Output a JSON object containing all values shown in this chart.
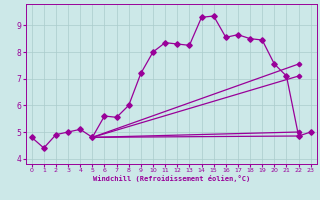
{
  "xlabel": "Windchill (Refroidissement éolien,°C)",
  "background_color": "#cce8e8",
  "grid_color": "#aacccc",
  "line_color": "#990099",
  "xlim": [
    -0.5,
    23.5
  ],
  "ylim": [
    3.8,
    9.8
  ],
  "yticks": [
    4,
    5,
    6,
    7,
    8,
    9
  ],
  "xticks": [
    0,
    1,
    2,
    3,
    4,
    5,
    6,
    7,
    8,
    9,
    10,
    11,
    12,
    13,
    14,
    15,
    16,
    17,
    18,
    19,
    20,
    21,
    22,
    23
  ],
  "main_x": [
    0,
    1,
    2,
    3,
    4,
    5,
    6,
    7,
    8,
    9,
    10,
    11,
    12,
    13,
    14,
    15,
    16,
    17,
    18,
    19,
    20,
    21,
    22,
    23
  ],
  "main_y": [
    4.8,
    4.4,
    4.9,
    5.0,
    5.1,
    4.8,
    5.6,
    5.55,
    6.0,
    7.2,
    8.0,
    8.35,
    8.3,
    8.25,
    9.3,
    9.35,
    8.55,
    8.65,
    8.5,
    8.45,
    7.55,
    7.1,
    4.85,
    5.0
  ],
  "line1_x": [
    5,
    22
  ],
  "line1_y": [
    4.8,
    5.0
  ],
  "line2_x": [
    5,
    22
  ],
  "line2_y": [
    4.8,
    7.1
  ],
  "line3_x": [
    5,
    22
  ],
  "line3_y": [
    4.8,
    7.55
  ],
  "line4_x": [
    5,
    22
  ],
  "line4_y": [
    4.8,
    4.85
  ],
  "lw": 0.9,
  "ms": 2.8
}
